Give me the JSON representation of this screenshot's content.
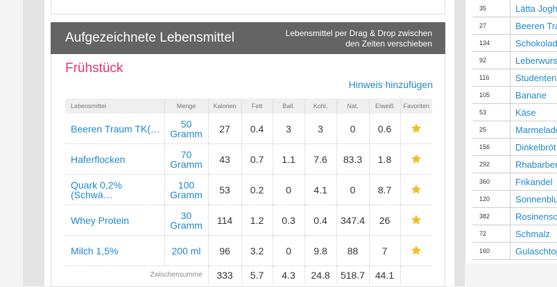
{
  "panel": {
    "title": "Aufgezeichnete Lebensmittel",
    "hint_line1": "Lebensmittel per Drag & Drop zwischen",
    "hint_line2": "den Zeiten verschieben"
  },
  "meal": {
    "title": "Frühstück",
    "add_note": "Hinweis hinzufügen",
    "columns": [
      "Lebensmittel",
      "Menge",
      "Kalorien",
      "Fett",
      "Ball.",
      "Kohl.",
      "Nat.",
      "Eiweiß",
      "Favoriten"
    ],
    "rows": [
      [
        "Beeren Traum TK(…",
        "50 Gramm",
        27,
        0.4,
        3,
        3,
        0,
        0.6
      ],
      [
        "Haferflocken",
        "70 Gramm",
        43,
        0.7,
        1.1,
        7.6,
        83.3,
        1.8
      ],
      [
        "Quark 0,2%(Schwä…",
        "100 Gramm",
        53,
        0.2,
        0,
        4.1,
        0,
        8.7
      ],
      [
        "Whey Protein",
        "30 Gramm",
        114,
        1.2,
        0.3,
        0.4,
        347.4,
        26
      ],
      [
        "Milch 1,5%",
        "200 ml",
        96,
        3.2,
        0,
        9.8,
        88,
        7
      ]
    ],
    "subtotal": {
      "label": "Zwischensumme",
      "values": [
        333,
        5.7,
        4.3,
        24.8,
        518.7,
        44.1
      ]
    }
  },
  "sidebar": {
    "rows": [
      [
        "35",
        "Lätta Jogh"
      ],
      [
        "27",
        "Beeren Tra"
      ],
      [
        "134",
        "Schokolad"
      ],
      [
        "92",
        "Leberwurs"
      ],
      [
        "116",
        "Studenten"
      ],
      [
        "105",
        "Banane"
      ],
      [
        "53",
        "Käse"
      ],
      [
        "25",
        "Marmelade"
      ],
      [
        "156",
        "Dinkelbröt"
      ],
      [
        "292",
        "Rhabarber"
      ],
      [
        "360",
        "Frikandel"
      ],
      [
        "120",
        "Sonnenblu"
      ],
      [
        "382",
        "Rosinensc"
      ],
      [
        "72",
        "Schmalz"
      ],
      [
        "160",
        "Gulaschtop"
      ]
    ]
  }
}
